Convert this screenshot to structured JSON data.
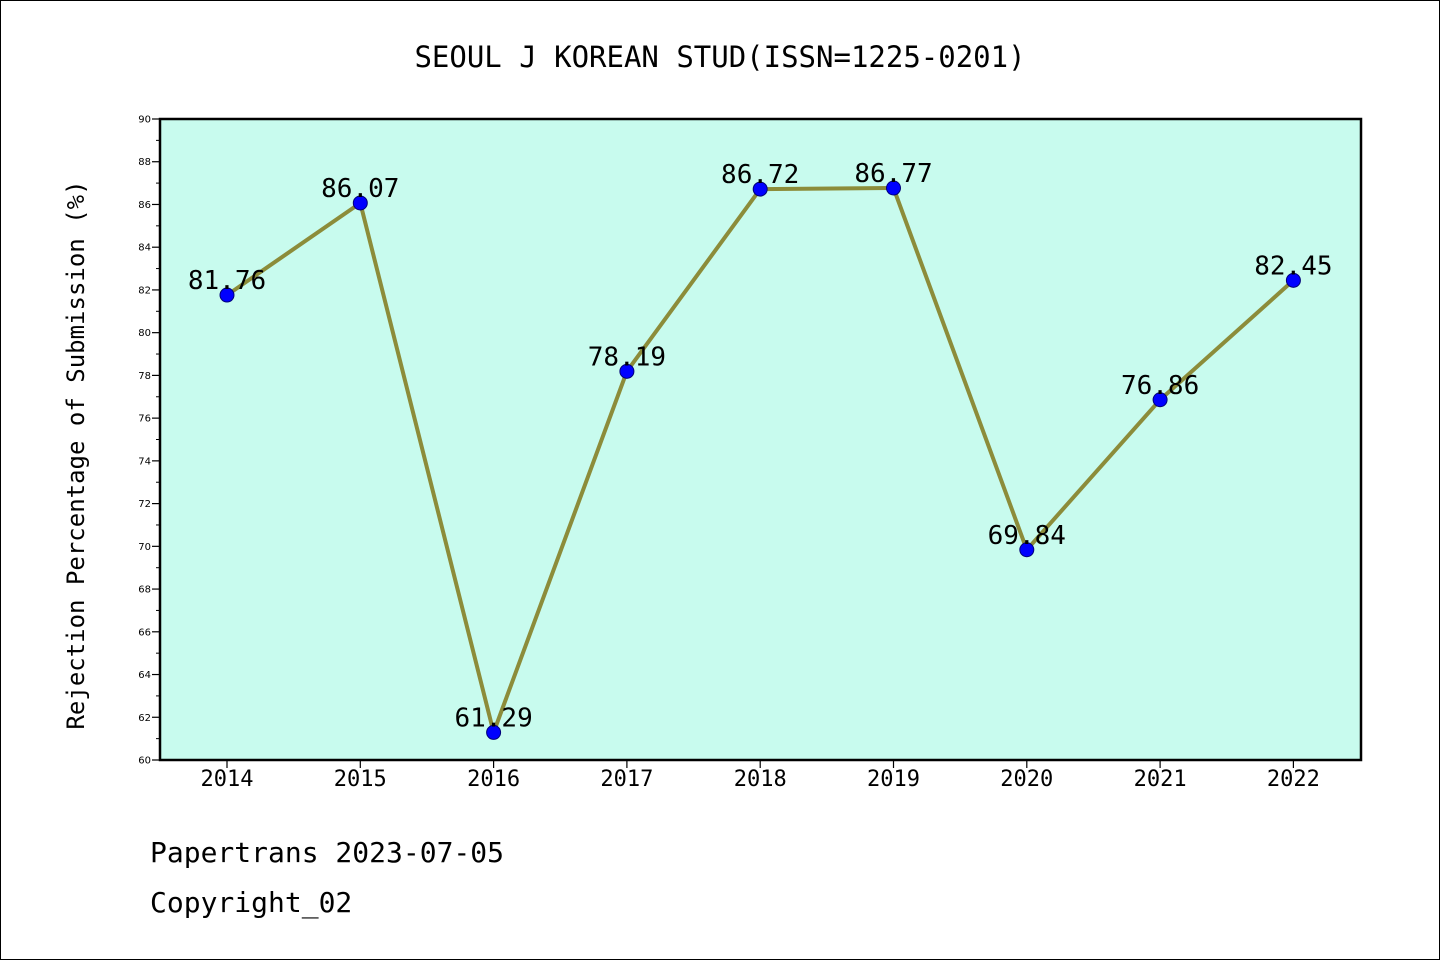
{
  "chart_data": {
    "type": "line",
    "title": "SEOUL J KOREAN STUD(ISSN=1225-0201)",
    "ylabel": "Rejection Percentage of Submission (%)",
    "xlabel": "",
    "x": [
      "2014",
      "2015",
      "2016",
      "2017",
      "2018",
      "2019",
      "2020",
      "2021",
      "2022"
    ],
    "series": [
      {
        "values": [
          81.76,
          86.07,
          61.29,
          78.19,
          86.72,
          86.77,
          69.84,
          76.86,
          82.45
        ],
        "labels": [
          "81.76",
          "86.07",
          "61.29",
          "78.19",
          "86.72",
          "86.77",
          "69.84",
          "76.86",
          "82.45"
        ],
        "line_color": "#8c8c3a",
        "marker_color": "#0000ff"
      }
    ],
    "ylim": [
      60,
      90
    ],
    "yticks": [
      60,
      62,
      64,
      66,
      68,
      70,
      72,
      74,
      76,
      78,
      80,
      82,
      84,
      86,
      88,
      90
    ],
    "plot_background": "#c8fbee",
    "grid": false,
    "legend": "none"
  },
  "footer": {
    "line1": "Papertrans 2023-07-05",
    "line2": "Copyright_02"
  }
}
